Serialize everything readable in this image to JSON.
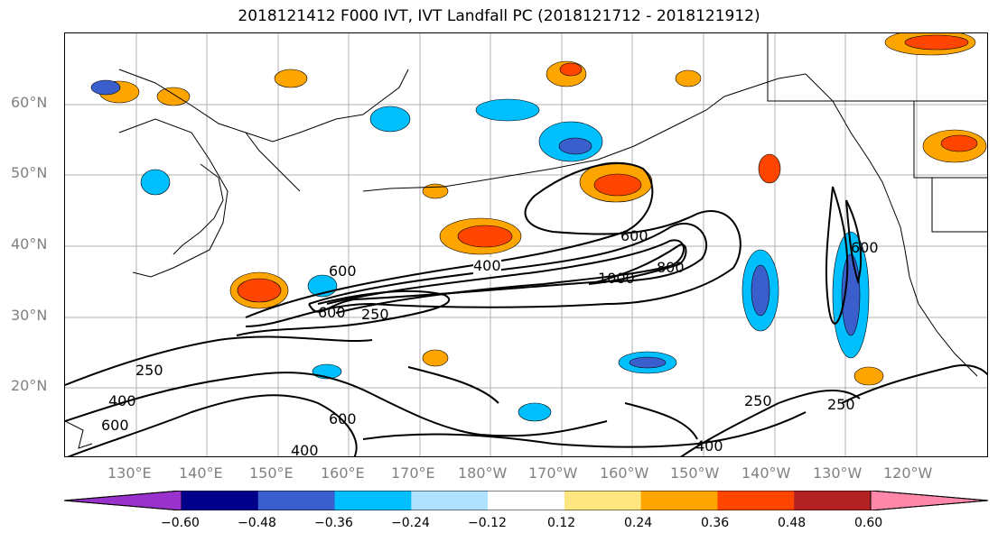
{
  "title": "2018121412 F000 IVT, IVT Landfall PC (2018121712 - 2018121912)",
  "lat_labels": [
    "60°N",
    "50°N",
    "40°N",
    "30°N",
    "20°N"
  ],
  "lon_labels": [
    "130°E",
    "140°E",
    "150°E",
    "160°E",
    "170°E",
    "180°W",
    "170°W",
    "160°W",
    "150°W",
    "140°W",
    "130°W",
    "120°W"
  ],
  "contour_labels": [
    "400",
    "600",
    "1000",
    "800",
    "600",
    "250",
    "600",
    "250",
    "400",
    "600",
    "400",
    "250",
    "250",
    "600",
    "400",
    "600"
  ],
  "colorbar": {
    "ticks": [
      "−0.60",
      "−0.48",
      "−0.36",
      "−0.24",
      "−0.12",
      "0.12",
      "0.24",
      "0.36",
      "0.48",
      "0.60"
    ],
    "colors": [
      "#9932cc",
      "#00008b",
      "#3a5fcd",
      "#00bfff",
      "#b0e2ff",
      "#ffffff",
      "#ffe680",
      "#ffa500",
      "#ff4500",
      "#b22222",
      "#ff88aa"
    ]
  }
}
